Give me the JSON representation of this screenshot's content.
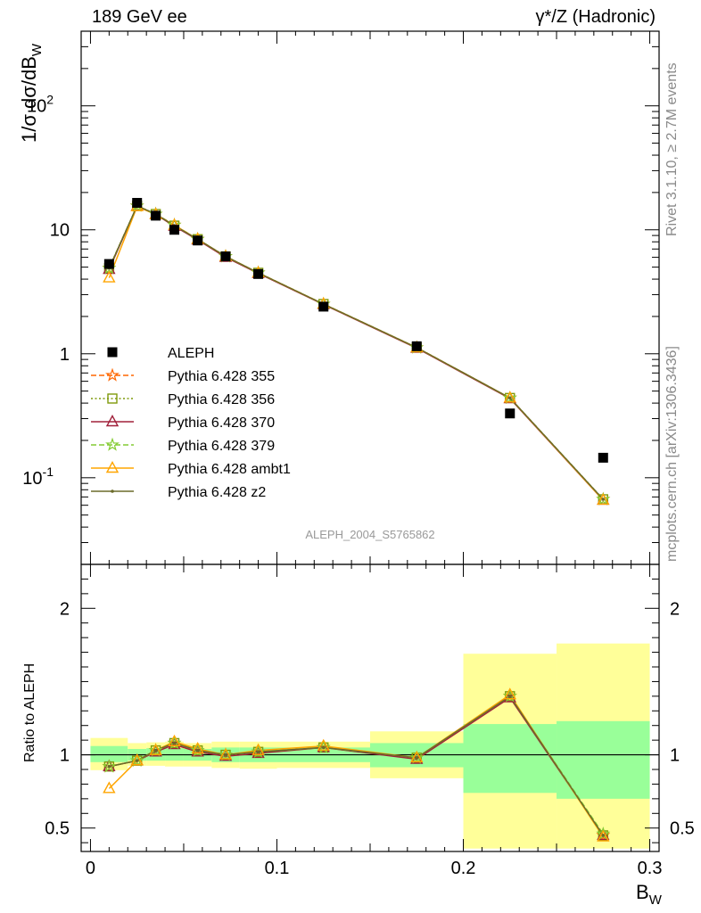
{
  "header": {
    "left": "189 GeV ee",
    "right": "γ*/Z (Hadronic)"
  },
  "side_labels": {
    "rivet": "Rivet 3.1.10, ≥ 2.7M events",
    "site": "mcplots.cern.ch [arXiv:1306.3436]"
  },
  "watermark": "ALEPH_2004_S5765862",
  "colors": {
    "data": "#000000",
    "p355": "#ff6600",
    "p356": "#7f9a0c",
    "p370": "#a0203a",
    "p379": "#84cc33",
    "ambt1": "#ffa500",
    "z2": "#6b6b2a",
    "band_outer": "#ffff99",
    "band_inner": "#99ff99"
  },
  "chart_data": [
    {
      "type": "scatter",
      "scale": "log",
      "ylabel": "1/σ dσ/dB_W",
      "xlim": [
        -0.005,
        0.305
      ],
      "ylim": [
        0.02,
        400
      ],
      "y_ticks": [
        "10^-1",
        "1",
        "10",
        "10^2"
      ],
      "bin_edges": [
        0.0,
        0.02,
        0.03,
        0.04,
        0.05,
        0.065,
        0.08,
        0.1,
        0.15,
        0.2,
        0.25,
        0.3
      ],
      "x": [
        0.01,
        0.025,
        0.035,
        0.045,
        0.0575,
        0.0725,
        0.09,
        0.125,
        0.175,
        0.225,
        0.275
      ],
      "series": [
        {
          "name": "ALEPH",
          "key": "data",
          "marker": "square",
          "values": [
            5.3,
            16.5,
            13.0,
            10.0,
            8.2,
            6.1,
            4.4,
            2.4,
            1.15,
            0.33,
            0.145
          ]
        },
        {
          "name": "Pythia 6.428 355",
          "key": "p355",
          "marker": "star",
          "line": "dashed",
          "values": [
            4.9,
            15.6,
            13.4,
            10.9,
            8.4,
            6.1,
            4.5,
            2.52,
            1.12,
            0.44,
            0.067
          ]
        },
        {
          "name": "Pythia 6.428 356",
          "key": "p356",
          "marker": "square-open",
          "line": "dotted",
          "values": [
            4.9,
            15.6,
            13.4,
            10.8,
            8.4,
            6.1,
            4.5,
            2.52,
            1.12,
            0.44,
            0.067
          ]
        },
        {
          "name": "Pythia 6.428 370",
          "key": "p370",
          "marker": "triangle-open",
          "line": "solid",
          "values": [
            4.8,
            15.5,
            13.3,
            10.7,
            8.3,
            6.0,
            4.45,
            2.5,
            1.11,
            0.435,
            0.066
          ]
        },
        {
          "name": "Pythia 6.428 379",
          "key": "p379",
          "marker": "star",
          "line": "dashed",
          "values": [
            4.9,
            15.6,
            13.4,
            10.9,
            8.4,
            6.1,
            4.5,
            2.52,
            1.12,
            0.44,
            0.067
          ]
        },
        {
          "name": "Pythia 6.428 ambt1",
          "key": "ambt1",
          "marker": "triangle-open",
          "line": "solid",
          "values": [
            4.1,
            15.4,
            13.3,
            10.9,
            8.4,
            6.1,
            4.5,
            2.52,
            1.12,
            0.44,
            0.066
          ]
        },
        {
          "name": "Pythia 6.428 z2",
          "key": "z2",
          "marker": "dot",
          "line": "solid",
          "values": [
            4.9,
            15.6,
            13.4,
            10.8,
            8.4,
            6.1,
            4.5,
            2.52,
            1.12,
            0.44,
            0.067
          ]
        }
      ]
    },
    {
      "type": "scatter",
      "ylabel": "Ratio to ALEPH",
      "xlabel": "B_W",
      "xlim": [
        -0.005,
        0.305
      ],
      "ylim": [
        0.34,
        2.3
      ],
      "y_ticks": [
        0.5,
        1,
        2
      ],
      "x_ticks": [
        0,
        0.1,
        0.2,
        0.3
      ],
      "bands": {
        "edges": [
          0.0,
          0.02,
          0.03,
          0.04,
          0.05,
          0.065,
          0.08,
          0.1,
          0.15,
          0.2,
          0.25,
          0.3
        ],
        "inner_lo": [
          0.95,
          0.96,
          0.96,
          0.96,
          0.96,
          0.95,
          0.95,
          0.95,
          0.915,
          0.74,
          0.7
        ],
        "inner_hi": [
          1.06,
          1.04,
          1.045,
          1.045,
          1.04,
          1.05,
          1.05,
          1.05,
          1.08,
          1.21,
          1.23
        ],
        "outer_lo": [
          0.895,
          0.925,
          0.925,
          0.92,
          0.92,
          0.91,
          0.905,
          0.91,
          0.84,
          0.36,
          0.36
        ],
        "outer_hi": [
          1.115,
          1.08,
          1.085,
          1.09,
          1.08,
          1.09,
          1.09,
          1.09,
          1.16,
          1.69,
          1.76
        ]
      },
      "series": [
        {
          "name": "Pythia 6.428 355",
          "key": "p355",
          "marker": "star",
          "line": "dashed",
          "values": [
            0.92,
            0.96,
            1.03,
            1.08,
            1.03,
            1.0,
            1.02,
            1.05,
            0.98,
            1.4,
            0.45
          ]
        },
        {
          "name": "Pythia 6.428 356",
          "key": "p356",
          "marker": "square-open",
          "line": "dotted",
          "values": [
            0.92,
            0.96,
            1.03,
            1.08,
            1.03,
            1.0,
            1.02,
            1.05,
            0.98,
            1.4,
            0.45
          ]
        },
        {
          "name": "Pythia 6.428 370",
          "key": "p370",
          "marker": "triangle-open",
          "line": "solid",
          "values": [
            0.92,
            0.96,
            1.02,
            1.07,
            1.02,
            0.99,
            1.01,
            1.05,
            0.97,
            1.39,
            0.45
          ]
        },
        {
          "name": "Pythia 6.428 379",
          "key": "p379",
          "marker": "star",
          "line": "dashed",
          "values": [
            0.92,
            0.96,
            1.03,
            1.08,
            1.03,
            1.0,
            1.02,
            1.05,
            0.98,
            1.4,
            0.46
          ]
        },
        {
          "name": "Pythia 6.428 ambt1",
          "key": "ambt1",
          "marker": "triangle-open",
          "line": "solid",
          "values": [
            0.77,
            0.96,
            1.03,
            1.09,
            1.04,
            1.0,
            1.03,
            1.06,
            0.98,
            1.41,
            0.44
          ]
        },
        {
          "name": "Pythia 6.428 z2",
          "key": "z2",
          "marker": "dot",
          "line": "solid",
          "values": [
            0.92,
            0.96,
            1.03,
            1.08,
            1.03,
            1.0,
            1.02,
            1.05,
            0.98,
            1.4,
            0.45
          ]
        }
      ]
    }
  ]
}
